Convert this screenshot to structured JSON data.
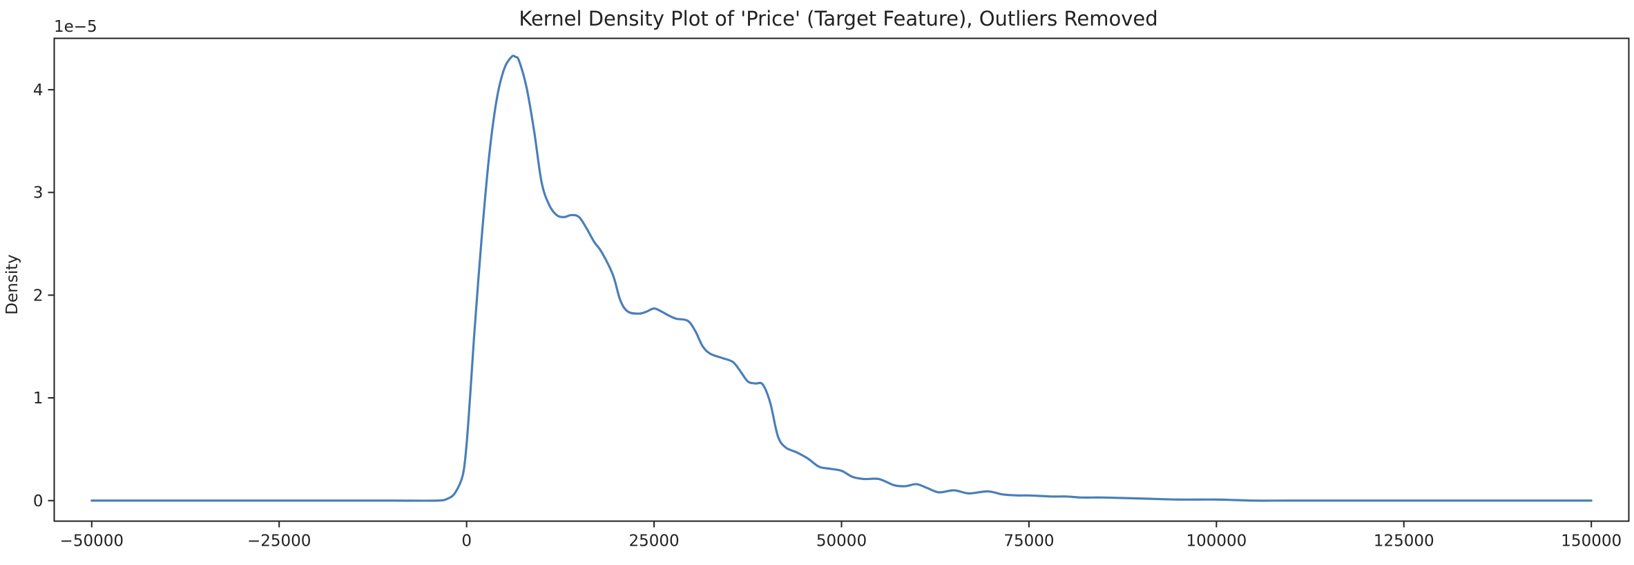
{
  "chart_data": {
    "type": "line",
    "title": "Kernel Density Plot of 'Price' (Target Feature), Outliers Removed",
    "xlabel": "",
    "ylabel": "Density",
    "y_offset_label": "1e−5",
    "y_scale_factor": 1e-05,
    "xlim": [
      -55000,
      155000
    ],
    "ylim": [
      -0.2,
      4.5
    ],
    "grid": false,
    "x_ticks": [
      -50000,
      -25000,
      0,
      25000,
      50000,
      75000,
      100000,
      125000,
      150000
    ],
    "x_tick_labels": [
      "−50000",
      "−25000",
      "0",
      "25000",
      "50000",
      "75000",
      "100000",
      "125000",
      "150000"
    ],
    "y_ticks": [
      0,
      1,
      2,
      3,
      4
    ],
    "y_tick_labels": [
      "0",
      "1",
      "2",
      "3",
      "4"
    ],
    "series": [
      {
        "color": "#4a7fb8",
        "x": [
          -50000,
          -40000,
          -30000,
          -20000,
          -10000,
          -4000,
          -2500,
          -1500,
          -500,
          0,
          500,
          1000,
          2000,
          3000,
          4000,
          5000,
          6000,
          6500,
          7000,
          8000,
          9000,
          10000,
          11000,
          12000,
          13000,
          14000,
          15000,
          16000,
          17000,
          18000,
          19500,
          20500,
          21500,
          23000,
          24000,
          25000,
          26000,
          27000,
          28000,
          29500,
          30500,
          31500,
          32500,
          34000,
          35500,
          36500,
          37500,
          38500,
          39500,
          40500,
          41500,
          42500,
          44000,
          45500,
          47000,
          48500,
          50000,
          51500,
          53000,
          55000,
          57000,
          58500,
          60000,
          61500,
          63000,
          65000,
          67000,
          69500,
          71500,
          73500,
          75000,
          78000,
          80000,
          82000,
          85000,
          90000,
          95000,
          100000,
          105000,
          110000,
          120000,
          130000,
          140000,
          150000
        ],
        "values": [
          0.0,
          0.0,
          0.0,
          0.0,
          0.0,
          0.0,
          0.02,
          0.08,
          0.25,
          0.55,
          1.05,
          1.6,
          2.55,
          3.35,
          3.9,
          4.2,
          4.32,
          4.32,
          4.28,
          4.02,
          3.6,
          3.1,
          2.88,
          2.78,
          2.76,
          2.78,
          2.76,
          2.65,
          2.52,
          2.42,
          2.2,
          1.95,
          1.84,
          1.82,
          1.84,
          1.87,
          1.84,
          1.8,
          1.77,
          1.75,
          1.65,
          1.5,
          1.43,
          1.39,
          1.35,
          1.26,
          1.16,
          1.14,
          1.13,
          0.95,
          0.63,
          0.52,
          0.47,
          0.41,
          0.33,
          0.31,
          0.29,
          0.23,
          0.21,
          0.21,
          0.15,
          0.14,
          0.16,
          0.12,
          0.08,
          0.1,
          0.07,
          0.09,
          0.06,
          0.05,
          0.05,
          0.04,
          0.04,
          0.03,
          0.03,
          0.02,
          0.01,
          0.01,
          0.0,
          0.0,
          0.0,
          0.0,
          0.0,
          0.0
        ]
      }
    ]
  }
}
